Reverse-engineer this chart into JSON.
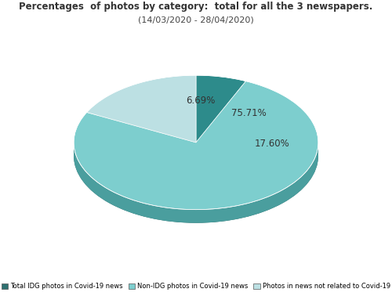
{
  "title_line1": "Percentages  of photos by category:  total for all the 3 newspapers.",
  "title_line2": "(14/03/2020 - 28/04/2020)",
  "values": [
    6.69,
    75.71,
    17.6
  ],
  "labels": [
    "6.69%",
    "75.71%",
    "17.60%"
  ],
  "colors_top": [
    "#2d8b8b",
    "#7dcece",
    "#bce0e3"
  ],
  "colors_side": [
    "#2a6b6b",
    "#4a9e9e",
    "#6dbaba"
  ],
  "legend_labels": [
    "Total IDG photos in Covid-19 news",
    "Non-IDG photos in Covid-19 news",
    "Photos in news not related to Covid-19"
  ],
  "legend_colors": [
    "#2d7070",
    "#7dcece",
    "#bce0e3"
  ],
  "background_color": "#ffffff",
  "startangle": 90,
  "depth": 0.12,
  "yscale": 0.55
}
